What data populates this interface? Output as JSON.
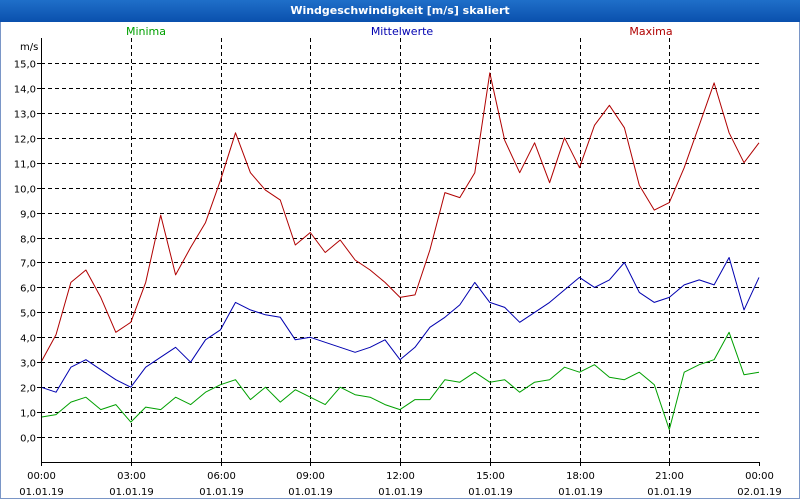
{
  "window": {
    "title": "Windgeschwindigkeit [m/s] skaliert"
  },
  "chart_data": {
    "type": "line",
    "title": "Windgeschwindigkeit [m/s] skaliert",
    "ylabel": "m/s",
    "xlabel": "",
    "ylim": [
      -1,
      16
    ],
    "y_ticks": [
      0,
      1,
      2,
      3,
      4,
      5,
      6,
      7,
      8,
      9,
      10,
      11,
      12,
      13,
      14,
      15
    ],
    "y_tick_labels": [
      "0,0",
      "1,0",
      "2,0",
      "3,0",
      "4,0",
      "5,0",
      "6,0",
      "7,0",
      "8,0",
      "9,0",
      "10,0",
      "11,0",
      "12,0",
      "13,0",
      "14,0",
      "15,0"
    ],
    "xlim": [
      0,
      24
    ],
    "x_ticks": [
      {
        "hour": 0,
        "time": "00:00",
        "date": "01.01.19"
      },
      {
        "hour": 3,
        "time": "03:00",
        "date": "01.01.19"
      },
      {
        "hour": 6,
        "time": "06:00",
        "date": "01.01.19"
      },
      {
        "hour": 9,
        "time": "09:00",
        "date": "01.01.19"
      },
      {
        "hour": 12,
        "time": "12:00",
        "date": "01.01.19"
      },
      {
        "hour": 15,
        "time": "15:00",
        "date": "01.01.19"
      },
      {
        "hour": 18,
        "time": "18:00",
        "date": "01.01.19"
      },
      {
        "hour": 21,
        "time": "21:00",
        "date": "01.01.19"
      },
      {
        "hour": 24,
        "time": "00:00",
        "date": "02.01.19"
      }
    ],
    "grid": true,
    "legend_position": "top",
    "x": [
      0,
      0.5,
      1,
      1.5,
      2,
      2.5,
      3,
      3.5,
      4,
      4.5,
      5,
      5.5,
      6,
      6.5,
      7,
      7.5,
      8,
      8.5,
      9,
      9.5,
      10,
      10.5,
      11,
      11.5,
      12,
      12.5,
      13,
      13.5,
      14,
      14.5,
      15,
      15.5,
      16,
      16.5,
      17,
      17.5,
      18,
      18.5,
      19,
      19.5,
      20,
      20.5,
      21,
      21.5,
      22,
      22.5,
      23,
      23.5,
      24
    ],
    "series": [
      {
        "name": "Minima",
        "color": "#00a000",
        "values": [
          0.8,
          0.9,
          1.4,
          1.6,
          1.1,
          1.3,
          0.6,
          1.2,
          1.1,
          1.6,
          1.3,
          1.8,
          2.1,
          2.3,
          1.5,
          2.0,
          1.4,
          1.9,
          1.6,
          1.3,
          2.0,
          1.7,
          1.6,
          1.3,
          1.1,
          1.5,
          1.5,
          2.3,
          2.2,
          2.6,
          2.2,
          2.3,
          1.8,
          2.2,
          2.3,
          2.8,
          2.6,
          2.9,
          2.4,
          2.3,
          2.6,
          2.1,
          0.3,
          2.6,
          2.9,
          3.1,
          4.2,
          2.5,
          2.6
        ]
      },
      {
        "name": "Mittelwerte",
        "color": "#0000b0",
        "values": [
          2.0,
          1.8,
          2.8,
          3.1,
          2.7,
          2.3,
          2.0,
          2.8,
          3.2,
          3.6,
          3.0,
          3.9,
          4.3,
          5.4,
          5.1,
          4.9,
          4.8,
          3.9,
          4.0,
          3.8,
          3.6,
          3.4,
          3.6,
          3.9,
          3.1,
          3.6,
          4.4,
          4.8,
          5.3,
          6.2,
          5.4,
          5.2,
          4.6,
          5.0,
          5.4,
          5.9,
          6.4,
          6.0,
          6.3,
          7.0,
          5.8,
          5.4,
          5.6,
          6.1,
          6.3,
          6.1,
          7.2,
          5.1,
          6.4
        ]
      },
      {
        "name": "Maxima",
        "color": "#b00000",
        "values": [
          3.0,
          4.1,
          6.2,
          6.7,
          5.6,
          4.2,
          4.6,
          6.2,
          8.9,
          6.5,
          7.6,
          8.6,
          10.3,
          12.2,
          10.6,
          9.9,
          9.5,
          7.7,
          8.2,
          7.4,
          7.9,
          7.1,
          6.7,
          6.2,
          5.6,
          5.7,
          7.5,
          9.8,
          9.6,
          10.6,
          14.6,
          11.9,
          10.6,
          11.8,
          10.2,
          12.0,
          10.8,
          12.5,
          13.3,
          12.4,
          10.1,
          9.1,
          9.4,
          10.8,
          12.5,
          14.2,
          12.2,
          11.0,
          11.8
        ]
      }
    ]
  }
}
